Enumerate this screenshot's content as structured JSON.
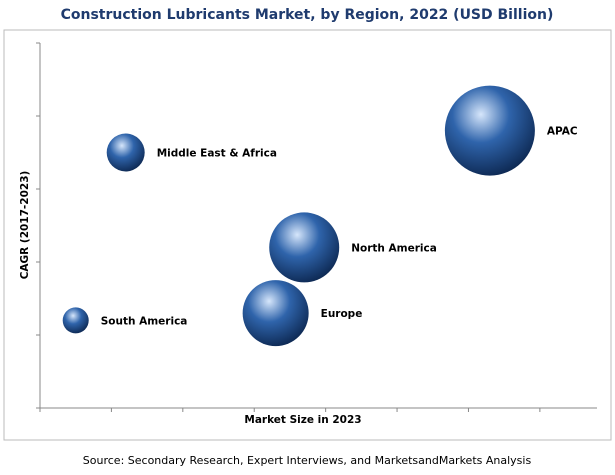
{
  "chart_data": {
    "type": "bubble",
    "title": "Construction Lubricants Market, by Region, 2022 (USD Billion)",
    "x_label": "Market Size in 2023",
    "y_label": "CAGR (2017-2023)",
    "source": "Source: Secondary Research, Expert Interviews, and MarketsandMarkets Analysis",
    "labels": [
      "APAC",
      "Middle East & Africa",
      "North America",
      "Europe",
      "South America"
    ],
    "x": [
      6.3,
      1.2,
      3.7,
      3.3,
      0.5
    ],
    "y": [
      3.8,
      3.5,
      2.2,
      1.3,
      1.2
    ],
    "sizes": [
      45,
      19,
      35,
      33,
      13
    ],
    "color": "#2f64ab",
    "xlim": [
      0,
      7.8
    ],
    "xticks": [
      0,
      1,
      2,
      3,
      4,
      5,
      6,
      7
    ],
    "ylim": [
      0,
      5
    ],
    "yticks": [
      0,
      1,
      2,
      3,
      4,
      5
    ]
  }
}
